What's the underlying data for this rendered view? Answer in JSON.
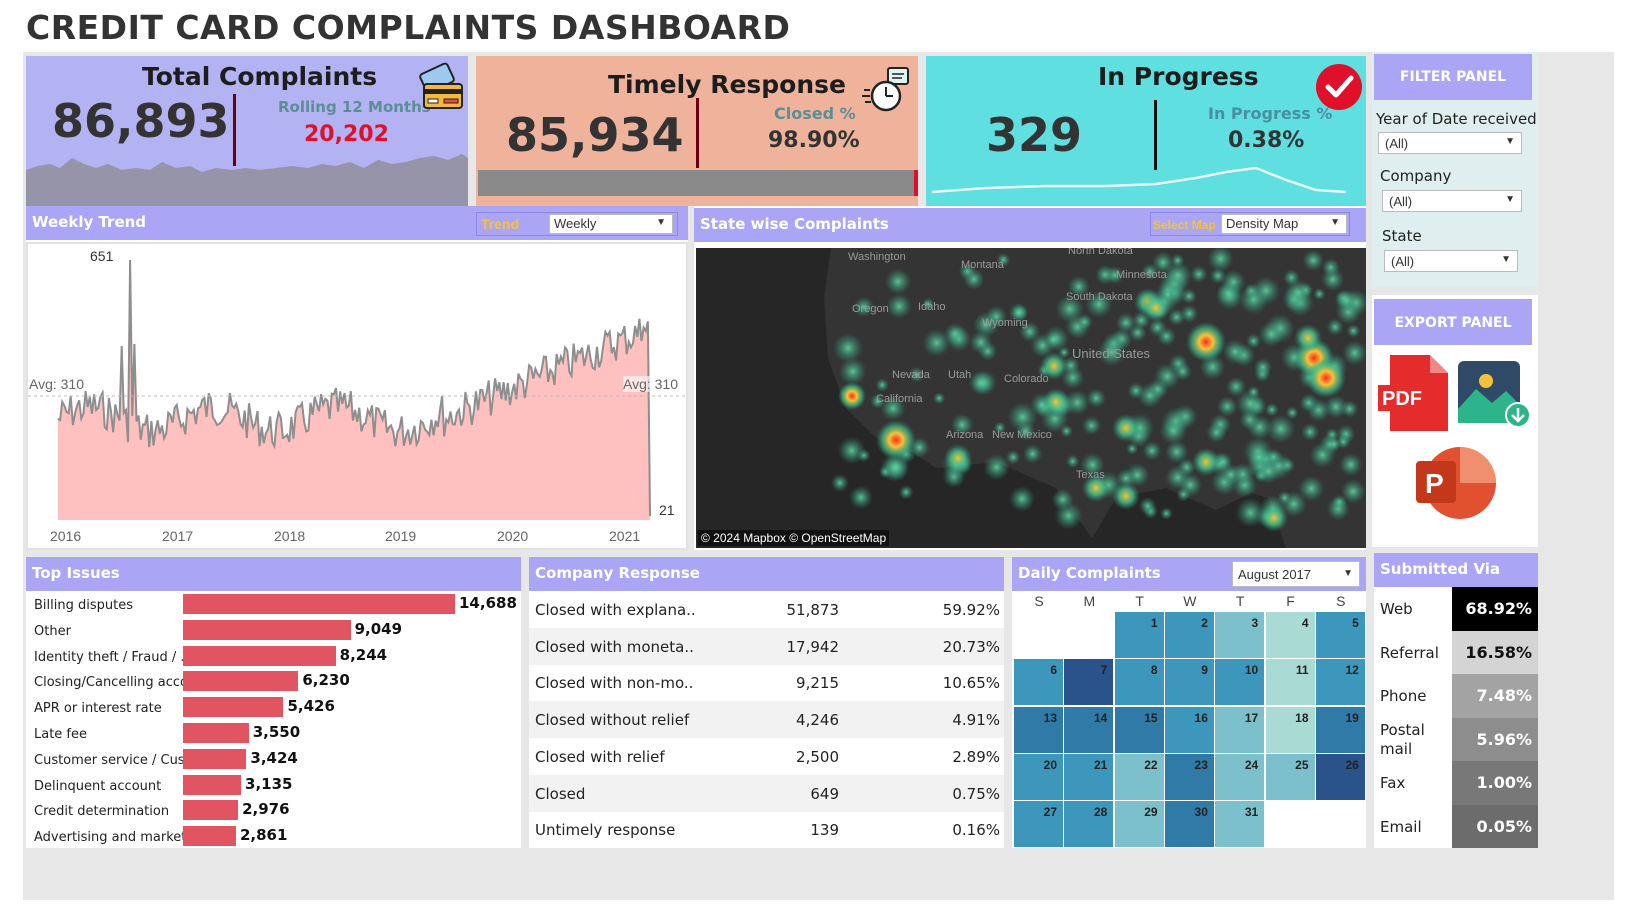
{
  "title": "CREDIT CARD COMPLAINTS DASHBOARD",
  "kpis": {
    "total": {
      "title": "Total Complaints",
      "value": "86,893",
      "sub_label": "Rolling 12 Months",
      "sub_value": "20,202",
      "icon": "credit-card-icon"
    },
    "timely": {
      "title": "Timely Response",
      "value": "85,934",
      "sub_label": "Closed %",
      "sub_value": "98.90%",
      "icon": "stopwatch-icon"
    },
    "progress": {
      "title": "In Progress",
      "value": "329",
      "sub_label": "In Progress %",
      "sub_value": "0.38%",
      "icon": "checkmark-icon"
    }
  },
  "weekly_trend": {
    "header": "Weekly Trend",
    "trend_label": "Trend",
    "trend_value": "Weekly",
    "peak_label": "651",
    "avg_label_left": "Avg: 310",
    "avg_label_right": "Avg: 310",
    "end_label": "21",
    "years": [
      "2016",
      "2017",
      "2018",
      "2019",
      "2020",
      "2021"
    ]
  },
  "state_map": {
    "header": "State wise Complaints",
    "select_label": "Select Map",
    "select_value": "Density Map",
    "attribution": "© 2024 Mapbox © OpenStreetMap",
    "labels": [
      "Montana",
      "North Dakota",
      "South Dakota",
      "Idaho",
      "Wyoming",
      "Oregon",
      "Nevada",
      "Utah",
      "Colorado",
      "United States",
      "Arizona",
      "New Mexico",
      "Texas",
      "Minnesota",
      "Washington",
      "California"
    ]
  },
  "filter_panel": {
    "title": "FILTER PANEL",
    "filters": [
      {
        "label": "Year of Date received",
        "value": "(All)"
      },
      {
        "label": "Company",
        "value": "(All)"
      },
      {
        "label": "State",
        "value": "(All)"
      }
    ]
  },
  "export_panel": {
    "title": "EXPORT PANEL",
    "pdf_label": "PDF",
    "ppt_label": "P"
  },
  "top_issues": {
    "header": "Top Issues",
    "items": [
      {
        "label": "Billing disputes",
        "value": 14688,
        "text": "14,688"
      },
      {
        "label": "Other",
        "value": 9049,
        "text": "9,049"
      },
      {
        "label": "Identity theft / Fraud / ..",
        "value": 8244,
        "text": "8,244"
      },
      {
        "label": "Closing/Cancelling acco..",
        "value": 6230,
        "text": "6,230"
      },
      {
        "label": "APR or interest rate",
        "value": 5426,
        "text": "5,426"
      },
      {
        "label": "Late fee",
        "value": 3550,
        "text": "3,550"
      },
      {
        "label": "Customer service / Cust..",
        "value": 3424,
        "text": "3,424"
      },
      {
        "label": "Delinquent account",
        "value": 3135,
        "text": "3,135"
      },
      {
        "label": "Credit determination",
        "value": 2976,
        "text": "2,976"
      },
      {
        "label": "Advertising and market..",
        "value": 2861,
        "text": "2,861"
      }
    ]
  },
  "company_response": {
    "header": "Company Response",
    "rows": [
      {
        "label": "Closed with explana..",
        "count": "51,873",
        "pct": "59.92%"
      },
      {
        "label": "Closed with moneta..",
        "count": "17,942",
        "pct": "20.73%"
      },
      {
        "label": "Closed with non-mo..",
        "count": "9,215",
        "pct": "10.65%"
      },
      {
        "label": "Closed without relief",
        "count": "4,246",
        "pct": "4.91%"
      },
      {
        "label": "Closed with relief",
        "count": "2,500",
        "pct": "2.89%"
      },
      {
        "label": "Closed",
        "count": "649",
        "pct": "0.75%"
      },
      {
        "label": "Untimely response",
        "count": "139",
        "pct": "0.16%"
      }
    ]
  },
  "daily_complaints": {
    "header": "Daily Complaints",
    "month": "August 2017",
    "dow": [
      "S",
      "M",
      "T",
      "W",
      "T",
      "F",
      "S"
    ],
    "days": [
      {
        "d": "1",
        "level": 3
      },
      {
        "d": "2",
        "level": 3
      },
      {
        "d": "3",
        "level": 2
      },
      {
        "d": "4",
        "level": 1
      },
      {
        "d": "5",
        "level": 3
      },
      {
        "d": "6",
        "level": 3
      },
      {
        "d": "7",
        "level": 5
      },
      {
        "d": "8",
        "level": 3
      },
      {
        "d": "9",
        "level": 3
      },
      {
        "d": "10",
        "level": 3
      },
      {
        "d": "11",
        "level": 1
      },
      {
        "d": "12",
        "level": 3
      },
      {
        "d": "13",
        "level": 4
      },
      {
        "d": "14",
        "level": 4
      },
      {
        "d": "15",
        "level": 4
      },
      {
        "d": "16",
        "level": 3
      },
      {
        "d": "17",
        "level": 2
      },
      {
        "d": "18",
        "level": 1
      },
      {
        "d": "19",
        "level": 4
      },
      {
        "d": "20",
        "level": 3
      },
      {
        "d": "21",
        "level": 3
      },
      {
        "d": "22",
        "level": 2
      },
      {
        "d": "23",
        "level": 4
      },
      {
        "d": "24",
        "level": 2
      },
      {
        "d": "25",
        "level": 2
      },
      {
        "d": "26",
        "level": 5
      },
      {
        "d": "27",
        "level": 3
      },
      {
        "d": "28",
        "level": 3
      },
      {
        "d": "29",
        "level": 2
      },
      {
        "d": "30",
        "level": 4
      },
      {
        "d": "31",
        "level": 2
      }
    ],
    "colors": {
      "1": "#a9dad3",
      "2": "#7cc0cc",
      "3": "#3d97bd",
      "4": "#2f7aa6",
      "5": "#29538a"
    }
  },
  "submitted_via": {
    "header": "Submitted Via",
    "rows": [
      {
        "label": "Web",
        "pct": "68.92%",
        "color": "#000000"
      },
      {
        "label": "Referral",
        "pct": "16.58%",
        "color": "#d4d4d4",
        "text_color": "#111111"
      },
      {
        "label": "Phone",
        "pct": "7.48%",
        "color": "#a3a3a3"
      },
      {
        "label": "Postal mail",
        "pct": "5.96%",
        "color": "#8d8d8d"
      },
      {
        "label": "Fax",
        "pct": "1.00%",
        "color": "#787878"
      },
      {
        "label": "Email",
        "pct": "0.05%",
        "color": "#6c6c6c"
      }
    ]
  },
  "colors": {
    "kpi_total": "#b3b2f2",
    "kpi_timely": "#efb39b",
    "kpi_progress": "#5fdfe0",
    "header": "#aaa6f5",
    "bar": "#e05561",
    "trend_fill": "#ffc0c0",
    "trend_line": "#8e8e8e",
    "accent_red": "#e0102b"
  }
}
